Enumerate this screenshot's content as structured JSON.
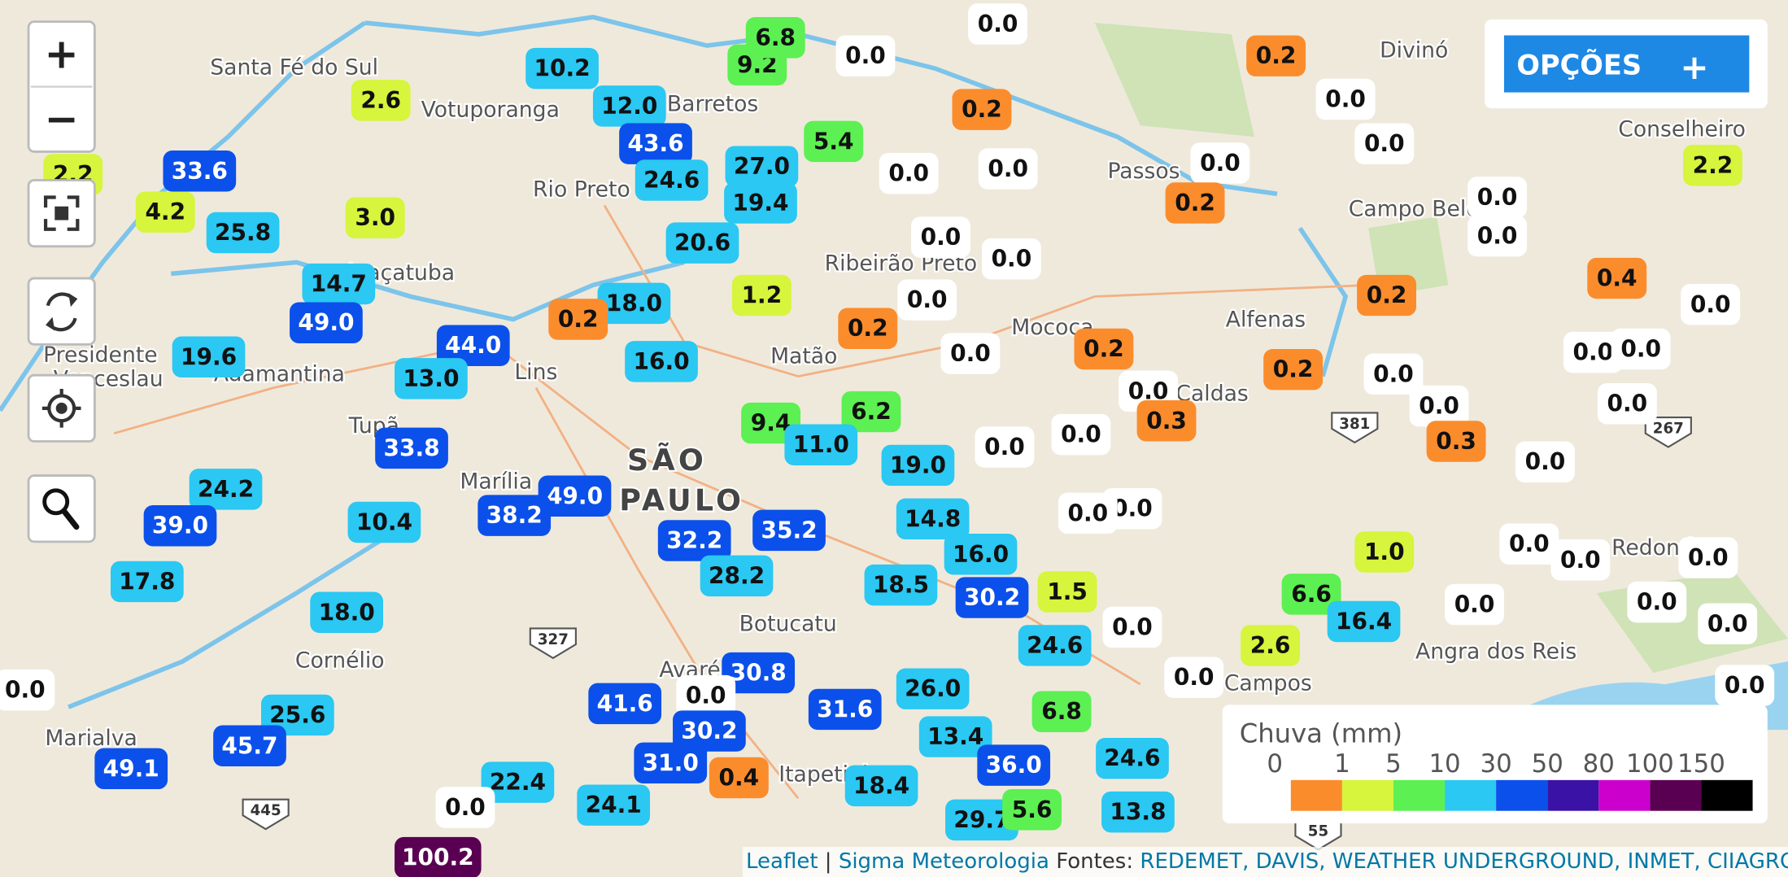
{
  "controls": {
    "zoom_in": "+",
    "zoom_out": "−"
  },
  "options": {
    "label": "OPÇÕES",
    "toggle": "+"
  },
  "places": [
    "Santa Fé do Sul",
    "Votuporanga",
    "Barretos",
    "Ribeirão Preto",
    "Araçatuba",
    "Presidente",
    "Venceslau",
    "Adamantina",
    "Lins",
    "Matão",
    "Marília",
    "SÃO",
    "PAULO",
    "Botucatu",
    "Avaré",
    "Itapetininga",
    "Cornélio",
    "Marialva",
    "Passos",
    "Campo Belo",
    "Alfenas",
    "Conselheiro",
    "Caldas",
    "Angra dos Reis",
    "Redonda",
    "Campos",
    "Mococa",
    "Tupã",
    "Divinó",
    "Rio Preto"
  ],
  "road_shields": [
    "327",
    "445",
    "381",
    "267",
    "55"
  ],
  "markers": [
    "10.2",
    "9.2",
    "6.8",
    "0.0",
    "0.0",
    "0.2",
    "2.6",
    "12.0",
    "43.6",
    "5.4",
    "0.2",
    "0.0",
    "0.0",
    "0.0",
    "0.0",
    "0.0",
    "33.6",
    "2.2",
    "27.0",
    "24.6",
    "0.2",
    "0.0",
    "0.0",
    "2.2",
    "4.2",
    "3.0",
    "25.8",
    "19.4",
    "0.0",
    "0.0",
    "20.6",
    "14.7",
    "18.0",
    "1.2",
    "0.0",
    "0.4",
    "0.2",
    "0.0",
    "49.0",
    "44.0",
    "0.2",
    "0.2",
    "19.6",
    "16.0",
    "0.0",
    "0.2",
    "0.2",
    "0.0",
    "0.0",
    "0.0",
    "13.0",
    "0.0",
    "0.0",
    "0.0",
    "9.4",
    "6.2",
    "0.3",
    "0.3",
    "33.8",
    "11.0",
    "19.0",
    "0.0",
    "0.0",
    "0.0",
    "24.2",
    "49.0",
    "38.2",
    "10.4",
    "0.0",
    "0.0",
    "39.0",
    "14.8",
    "35.2",
    "32.2",
    "1.0",
    "0.0",
    "0.0",
    "0.0",
    "17.8",
    "16.0",
    "28.2",
    "18.5",
    "1.5",
    "30.2",
    "18.0",
    "6.6",
    "16.4",
    "0.0",
    "0.0",
    "24.6",
    "0.0",
    "2.6",
    "0.0",
    "0.0",
    "30.8",
    "41.6",
    "0.0",
    "31.6",
    "26.0",
    "0.0",
    "6.8",
    "0.0",
    "25.6",
    "30.2",
    "13.4",
    "45.7",
    "49.1",
    "31.0",
    "0.4",
    "36.0",
    "24.6",
    "22.4",
    "18.4",
    "0.0",
    "24.1",
    "13.8",
    "29.7",
    "5.6",
    "100.2"
  ],
  "legend": {
    "title": "Chuva (mm)",
    "ticks": [
      0,
      1,
      5,
      10,
      30,
      50,
      80,
      100,
      150
    ],
    "colors": [
      "#fb8c2c",
      "#d6f53c",
      "#5cf052",
      "#2ac8f2",
      "#0b50ea",
      "#3a12a6",
      "#cc00cc",
      "#5a0052",
      "#000000"
    ]
  },
  "attribution": {
    "leaflet": "Leaflet",
    "separator": "|",
    "sigma": "Sigma Meteorologia",
    "sources_label": "Fontes:",
    "sources": "REDEMET, DAVIS, WEATHER UNDERGROUND, INMET, CIIAGRO"
  }
}
